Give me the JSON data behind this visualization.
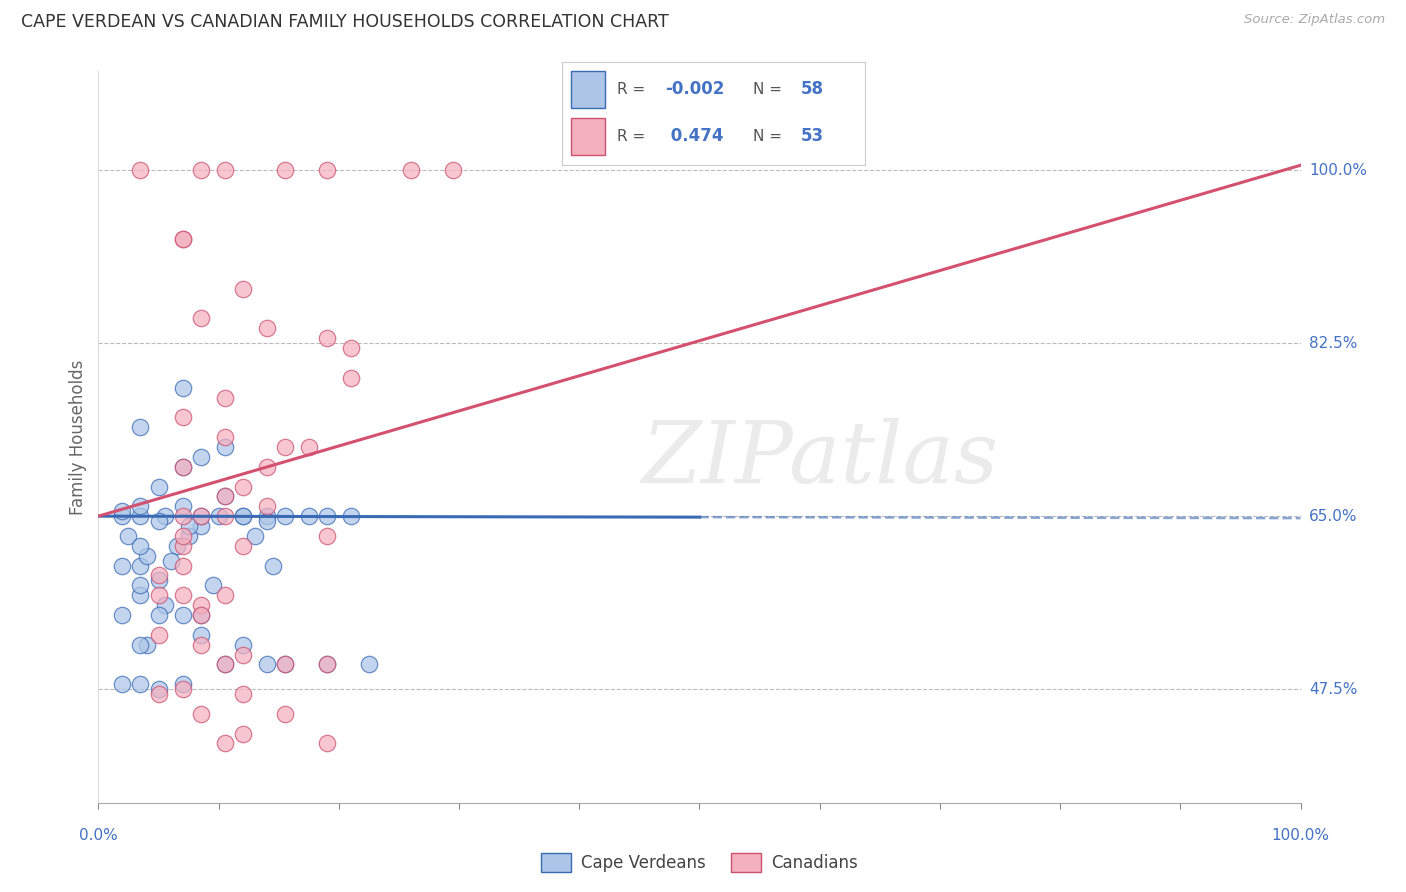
{
  "title": "CAPE VERDEAN VS CANADIAN FAMILY HOUSEHOLDS CORRELATION CHART",
  "source": "Source: ZipAtlas.com",
  "ylabel": "Family Households",
  "watermark": "ZIPatlas",
  "legend_blue_R": "-0.002",
  "legend_blue_N": "58",
  "legend_pink_R": "0.474",
  "legend_pink_N": "53",
  "legend_blue_label": "Cape Verdeans",
  "legend_pink_label": "Canadians",
  "yticks": [
    47.5,
    65.0,
    82.5,
    100.0
  ],
  "ytick_labels": [
    "47.5%",
    "65.0%",
    "82.5%",
    "100.0%"
  ],
  "blue_fill": "#adc6e8",
  "blue_edge": "#3b6ab5",
  "pink_fill": "#f5b0be",
  "pink_edge": "#cc5070",
  "blue_line_color": "#3b6ab5",
  "pink_line_color": "#d45070",
  "axis_color": "#4472c4",
  "grid_color": "#bbbbbb",
  "background": "#ffffff",
  "blue_x": [
    2.0,
    3.5,
    4.0,
    5.5,
    6.5,
    7.0,
    7.5,
    8.5,
    9.5,
    10.0,
    10.5,
    12.0,
    13.0,
    14.0,
    14.5,
    15.5,
    17.5,
    19.0,
    21.0,
    3.5,
    5.0,
    7.0,
    8.5,
    10.5,
    3.5,
    5.5,
    7.0,
    8.5,
    10.5,
    12.0,
    14.0,
    15.5,
    19.0,
    22.5,
    2.0,
    3.5,
    5.0,
    7.0,
    3.5,
    7.0,
    2.0,
    3.5,
    5.0,
    8.5,
    12.0,
    2.5,
    4.0,
    6.0,
    7.5,
    14.0,
    3.5,
    5.0,
    8.5,
    3.5,
    2.0,
    2.0,
    3.5,
    5.0
  ],
  "blue_y": [
    65.0,
    57.0,
    52.0,
    65.0,
    62.0,
    66.0,
    63.0,
    64.0,
    58.0,
    65.0,
    67.0,
    65.0,
    63.0,
    65.0,
    60.0,
    65.0,
    65.0,
    65.0,
    65.0,
    65.0,
    68.0,
    70.0,
    71.0,
    72.0,
    60.0,
    56.0,
    55.0,
    53.0,
    50.0,
    52.0,
    50.0,
    50.0,
    50.0,
    50.0,
    48.0,
    48.0,
    47.5,
    48.0,
    74.0,
    78.0,
    65.5,
    66.0,
    64.5,
    65.0,
    65.0,
    63.0,
    61.0,
    60.5,
    64.0,
    64.5,
    58.0,
    55.0,
    55.0,
    52.0,
    55.0,
    60.0,
    62.0,
    58.5
  ],
  "pink_x": [
    8.5,
    15.5,
    19.0,
    26.0,
    29.5,
    7.0,
    12.0,
    8.5,
    14.0,
    19.0,
    21.0,
    10.5,
    7.0,
    10.5,
    15.5,
    7.0,
    12.0,
    14.0,
    8.5,
    10.5,
    19.0,
    7.0,
    12.0,
    7.0,
    5.0,
    5.0,
    7.0,
    10.5,
    8.5,
    8.5,
    5.0,
    8.5,
    12.0,
    10.5,
    15.5,
    19.0,
    7.0,
    12.0,
    8.5,
    15.5,
    12.0,
    10.5,
    19.0,
    5.0,
    7.0,
    14.0,
    10.5,
    7.0,
    3.5,
    10.5,
    7.0,
    21.0,
    17.5
  ],
  "pink_y": [
    100.0,
    100.0,
    100.0,
    100.0,
    100.0,
    93.0,
    88.0,
    85.0,
    84.0,
    83.0,
    79.0,
    77.0,
    75.0,
    73.0,
    72.0,
    70.0,
    68.0,
    66.0,
    65.0,
    65.0,
    63.0,
    62.0,
    62.0,
    60.0,
    59.0,
    57.0,
    57.0,
    57.0,
    56.0,
    55.0,
    53.0,
    52.0,
    51.0,
    50.0,
    50.0,
    50.0,
    47.5,
    47.0,
    45.0,
    45.0,
    43.0,
    42.0,
    42.0,
    47.0,
    65.0,
    70.0,
    67.0,
    63.0,
    100.0,
    100.0,
    93.0,
    82.0,
    72.0
  ],
  "xlim": [
    0,
    100
  ],
  "ylim": [
    36,
    110
  ],
  "blue_intercept": 65.0,
  "blue_slope": -0.002,
  "pink_y_start": 65.0,
  "pink_y_end": 100.5,
  "pink_x_start": 0,
  "pink_x_end": 100
}
